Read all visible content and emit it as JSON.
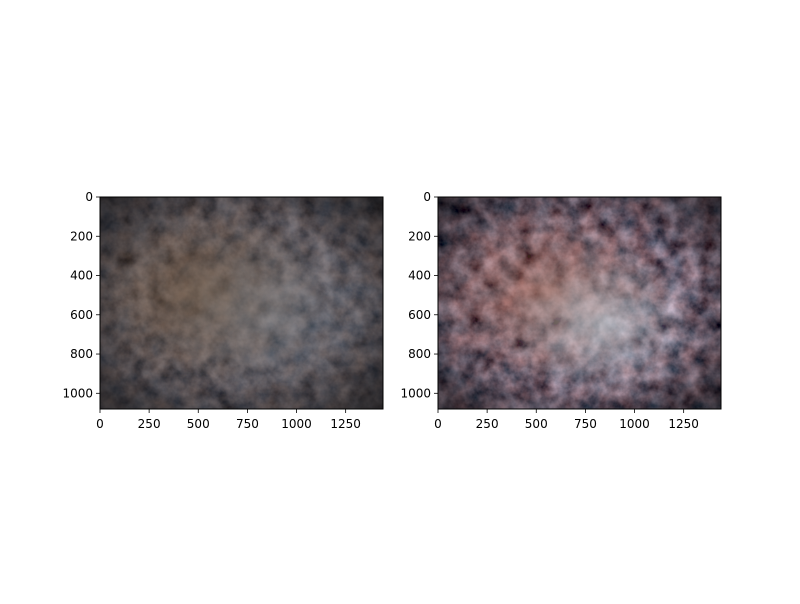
{
  "figure": {
    "background": "#ffffff",
    "panels": [
      {
        "id": "left",
        "description_role": "original",
        "xlim": [
          0,
          1440
        ],
        "ylim": [
          1080,
          0
        ],
        "x_ticks": [
          0,
          250,
          500,
          750,
          1000,
          1250
        ],
        "x_tick_labels": [
          "0",
          "250",
          "500",
          "750",
          "1000",
          "1250"
        ],
        "y_ticks": [
          0,
          200,
          400,
          600,
          800,
          1000
        ],
        "y_tick_labels": [
          "0",
          "200",
          "400",
          "600",
          "800",
          "1000"
        ],
        "tone": {
          "base": "#2b2926",
          "warm": "#6a533c",
          "cool": "#8e9aa6",
          "dark": "#151412"
        }
      },
      {
        "id": "right",
        "description_role": "enhanced",
        "xlim": [
          0,
          1440
        ],
        "ylim": [
          1080,
          0
        ],
        "x_ticks": [
          0,
          250,
          500,
          750,
          1000,
          1250
        ],
        "x_tick_labels": [
          "0",
          "250",
          "500",
          "750",
          "1000",
          "1250"
        ],
        "y_ticks": [
          0,
          200,
          400,
          600,
          800,
          1000
        ],
        "y_tick_labels": [
          "0",
          "200",
          "400",
          "600",
          "800",
          "1000"
        ],
        "tone": {
          "base": "#3a302c",
          "warm": "#9a5e48",
          "cool": "#c8dbe6",
          "dark": "#120e0d"
        }
      }
    ]
  }
}
